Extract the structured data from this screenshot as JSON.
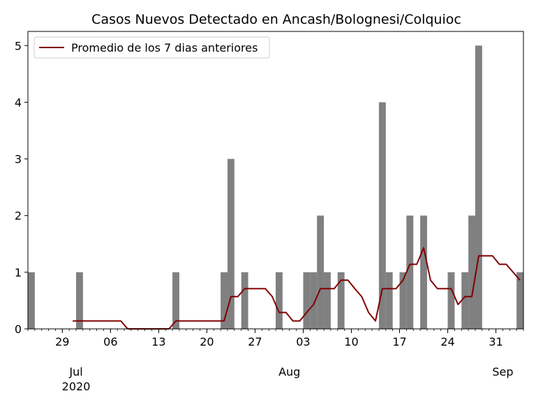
{
  "chart_data": {
    "type": "bar",
    "title": "Casos Nuevos Detectado en Ancash/Bolognesi/Colquioc",
    "xlabel": "",
    "ylabel": "",
    "ylim": [
      0,
      5.25
    ],
    "yticks": [
      0,
      1,
      2,
      3,
      4,
      5
    ],
    "x_range": [
      "2020-06-24",
      "2020-09-03"
    ],
    "minor_ticks": "daily",
    "major_ticks": [
      {
        "date": "2020-06-29",
        "label": "29"
      },
      {
        "date": "2020-07-06",
        "label": "06"
      },
      {
        "date": "2020-07-13",
        "label": "13"
      },
      {
        "date": "2020-07-20",
        "label": "20"
      },
      {
        "date": "2020-07-27",
        "label": "27"
      },
      {
        "date": "2020-08-03",
        "label": "03"
      },
      {
        "date": "2020-08-10",
        "label": "10"
      },
      {
        "date": "2020-08-17",
        "label": "17"
      },
      {
        "date": "2020-08-24",
        "label": "24"
      },
      {
        "date": "2020-08-31",
        "label": "31"
      }
    ],
    "month_labels": [
      {
        "date": "2020-07-01",
        "label": "Jul",
        "sublabel": "2020"
      },
      {
        "date": "2020-08-01",
        "label": "Aug",
        "sublabel": ""
      },
      {
        "date": "2020-09-01",
        "label": "Sep",
        "sublabel": ""
      }
    ],
    "grid": false,
    "legend_position": "top-left",
    "series": [
      {
        "kind": "bar",
        "color": "#808080",
        "dates": [
          "2020-06-24",
          "2020-07-01",
          "2020-07-15",
          "2020-07-22",
          "2020-07-23",
          "2020-07-25",
          "2020-07-30",
          "2020-08-03",
          "2020-08-04",
          "2020-08-05",
          "2020-08-06",
          "2020-08-08",
          "2020-08-14",
          "2020-08-15",
          "2020-08-17",
          "2020-08-18",
          "2020-08-20",
          "2020-08-24",
          "2020-08-26",
          "2020-08-27",
          "2020-08-28",
          "2020-09-03"
        ],
        "values": [
          1,
          1,
          1,
          1,
          3,
          1,
          1,
          1,
          1,
          2,
          1,
          1,
          4,
          1,
          1,
          2,
          2,
          1,
          1,
          2,
          5,
          1
        ]
      },
      {
        "kind": "line",
        "name": "Promedio de los 7 dias anteriores",
        "color": "#800000",
        "dates": [
          "2020-06-30",
          "2020-07-01",
          "2020-07-02",
          "2020-07-03",
          "2020-07-04",
          "2020-07-05",
          "2020-07-06",
          "2020-07-07",
          "2020-07-08",
          "2020-07-09",
          "2020-07-10",
          "2020-07-11",
          "2020-07-12",
          "2020-07-13",
          "2020-07-14",
          "2020-07-15",
          "2020-07-16",
          "2020-07-17",
          "2020-07-18",
          "2020-07-19",
          "2020-07-20",
          "2020-07-21",
          "2020-07-22",
          "2020-07-23",
          "2020-07-24",
          "2020-07-25",
          "2020-07-26",
          "2020-07-27",
          "2020-07-28",
          "2020-07-29",
          "2020-07-30",
          "2020-07-31",
          "2020-08-01",
          "2020-08-02",
          "2020-08-03",
          "2020-08-04",
          "2020-08-05",
          "2020-08-06",
          "2020-08-07",
          "2020-08-08",
          "2020-08-09",
          "2020-08-10",
          "2020-08-11",
          "2020-08-12",
          "2020-08-13",
          "2020-08-14",
          "2020-08-15",
          "2020-08-16",
          "2020-08-17",
          "2020-08-18",
          "2020-08-19",
          "2020-08-20",
          "2020-08-21",
          "2020-08-22",
          "2020-08-23",
          "2020-08-24",
          "2020-08-25",
          "2020-08-26",
          "2020-08-27",
          "2020-08-28",
          "2020-08-29",
          "2020-08-30",
          "2020-08-31",
          "2020-09-01",
          "2020-09-02",
          "2020-09-03"
        ],
        "values": [
          0.14,
          0.14,
          0.14,
          0.14,
          0.14,
          0.14,
          0.14,
          0.14,
          0,
          0,
          0,
          0,
          0,
          0,
          0,
          0.14,
          0.14,
          0.14,
          0.14,
          0.14,
          0.14,
          0.14,
          0.14,
          0.57,
          0.57,
          0.71,
          0.71,
          0.71,
          0.71,
          0.57,
          0.29,
          0.29,
          0.14,
          0.14,
          0.29,
          0.43,
          0.71,
          0.71,
          0.71,
          0.86,
          0.86,
          0.71,
          0.57,
          0.29,
          0.14,
          0.71,
          0.71,
          0.71,
          0.86,
          1.14,
          1.14,
          1.43,
          0.86,
          0.71,
          0.71,
          0.71,
          0.43,
          0.57,
          0.57,
          1.29,
          1.29,
          1.29,
          1.14,
          1.14,
          1.0,
          0.86
        ]
      }
    ]
  }
}
